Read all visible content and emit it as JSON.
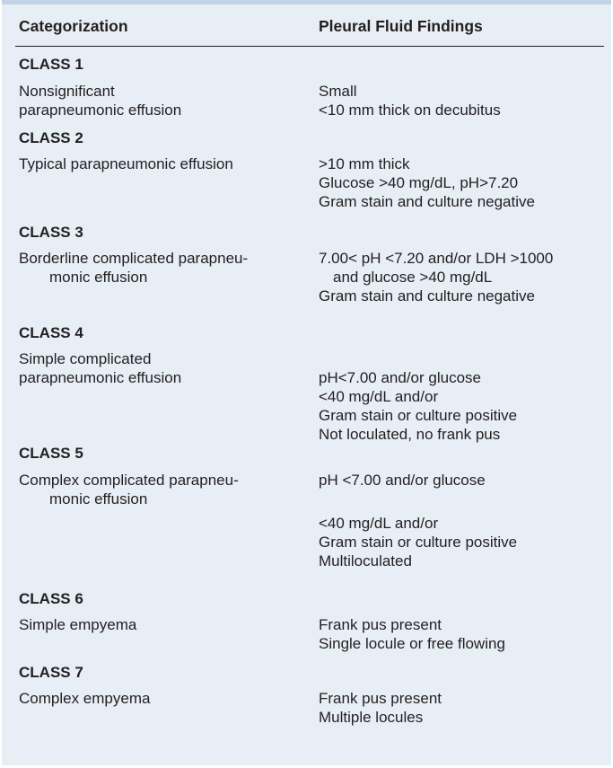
{
  "table": {
    "headers": {
      "categorization": "Categorization",
      "findings": "Pleural Fluid Findings"
    },
    "rows": [
      {
        "class": "CLASS 1",
        "cat": [
          "Nonsignificant",
          "parapneumonic effusion"
        ],
        "find": [
          "Small",
          "<10 mm thick on decubitus"
        ]
      },
      {
        "class": "CLASS 2",
        "cat": [
          "Typical parapneumonic effusion"
        ],
        "find": [
          ">10 mm thick",
          "Glucose >40 mg/dL, pH>7.20",
          "Gram stain and culture negative"
        ]
      },
      {
        "class": "CLASS 3",
        "cat": [
          "Borderline complicated parapneu-",
          "monic effusion"
        ],
        "find": [
          "7.00< pH <7.20 and/or LDH >1000",
          "and glucose >40 mg/dL",
          "Gram stain and culture negative"
        ]
      },
      {
        "class": "CLASS 4",
        "cat": [
          "Simple complicated",
          "parapneumonic effusion"
        ],
        "find": [
          "pH<7.00 and/or glucose",
          "<40 mg/dL and/or",
          "Gram stain or culture positive",
          "Not loculated, no frank pus"
        ]
      },
      {
        "class": "CLASS 5",
        "cat": [
          "Complex complicated parapneu-",
          "monic effusion"
        ],
        "find": [
          "pH <7.00 and/or glucose",
          "<40 mg/dL and/or",
          "Gram stain or culture positive",
          "Multiloculated"
        ]
      },
      {
        "class": "CLASS 6",
        "cat": [
          "Simple empyema"
        ],
        "find": [
          "Frank pus present",
          "Single locule or free flowing"
        ]
      },
      {
        "class": "CLASS 7",
        "cat": [
          "Complex empyema"
        ],
        "find": [
          "Frank pus present",
          "Multiple locules"
        ]
      }
    ]
  }
}
